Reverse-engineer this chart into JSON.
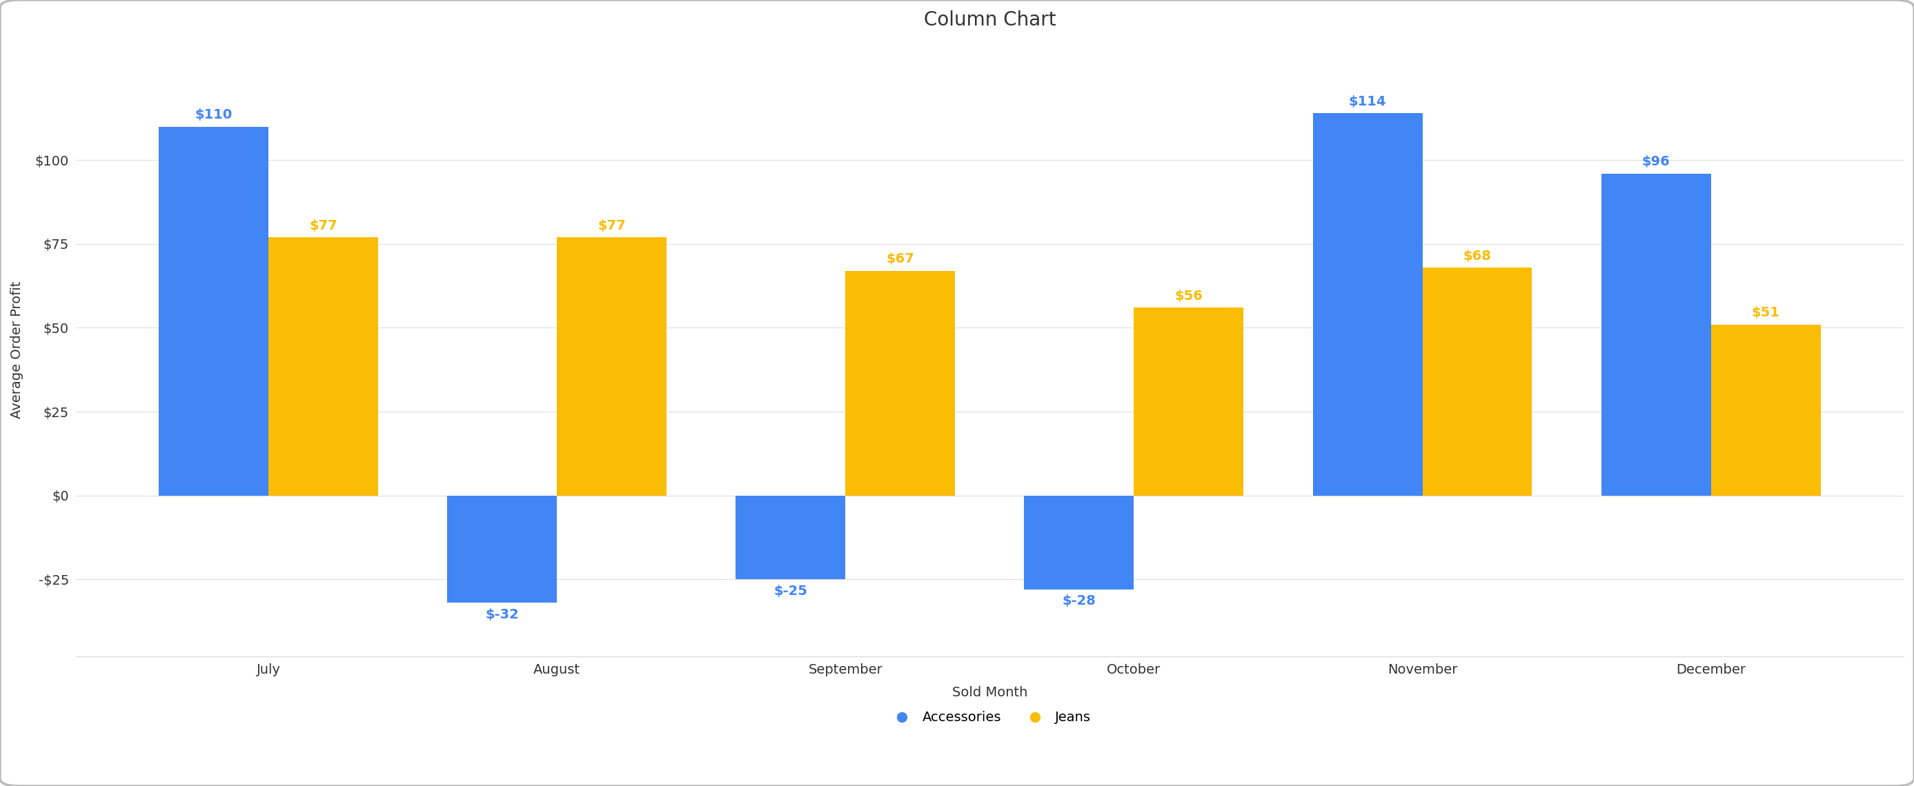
{
  "title": "Column Chart",
  "xlabel": "Sold Month",
  "ylabel": "Average Order Profit",
  "categories": [
    "July",
    "August",
    "September",
    "October",
    "November",
    "December"
  ],
  "accessories": [
    110,
    -32,
    -25,
    -28,
    114,
    96
  ],
  "jeans": [
    77,
    77,
    67,
    56,
    68,
    51
  ],
  "accessories_color": "#4285F4",
  "jeans_color": "#FBBC04",
  "background_color": "#FFFFFF",
  "plot_bg_color": "#FFFFFF",
  "grid_color": "#DDDDDD",
  "yticks": [
    -25,
    0,
    25,
    50,
    75,
    100
  ],
  "ytick_labels": [
    "-$25",
    "$0",
    "$25",
    "$50",
    "$75",
    "$100"
  ],
  "ylim": [
    -48,
    135
  ],
  "bar_width": 0.38,
  "title_fontsize": 20,
  "axis_label_fontsize": 14,
  "tick_fontsize": 14,
  "legend_fontsize": 14,
  "annotation_fontsize": 14,
  "border_color": "#BBBBBB",
  "text_color": "#333333"
}
